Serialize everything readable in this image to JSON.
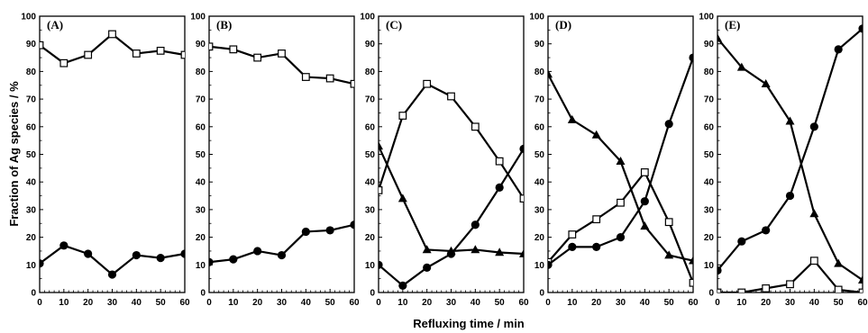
{
  "figure": {
    "xlabel": "Refluxing time / min",
    "ylabel": "Fraction of Ag species / %"
  },
  "chart_data": [
    {
      "type": "line",
      "label": "(A)",
      "x": [
        0,
        10,
        20,
        30,
        40,
        50,
        60
      ],
      "xlim": [
        0,
        60
      ],
      "ylim": [
        0,
        100
      ],
      "xticks": [
        0,
        10,
        20,
        30,
        40,
        50,
        60
      ],
      "yticks": [
        0,
        10,
        20,
        30,
        40,
        50,
        60,
        70,
        80,
        90,
        100
      ],
      "series": [
        {
          "marker": "open-square",
          "values": [
            89.5,
            83,
            86,
            93.5,
            86.5,
            87.5,
            86
          ]
        },
        {
          "marker": "filled-circle",
          "values": [
            10.5,
            17,
            14,
            6.5,
            13.5,
            12.5,
            14
          ]
        }
      ]
    },
    {
      "type": "line",
      "label": "(B)",
      "x": [
        0,
        10,
        20,
        30,
        40,
        50,
        60
      ],
      "xlim": [
        0,
        60
      ],
      "ylim": [
        0,
        100
      ],
      "xticks": [
        0,
        10,
        20,
        30,
        40,
        50,
        60
      ],
      "yticks": [
        0,
        10,
        20,
        30,
        40,
        50,
        60,
        70,
        80,
        90,
        100
      ],
      "series": [
        {
          "marker": "open-square",
          "values": [
            89,
            88,
            85,
            86.5,
            78,
            77.5,
            75.5
          ]
        },
        {
          "marker": "filled-circle",
          "values": [
            11,
            12,
            15,
            13.5,
            22,
            22.5,
            24.5
          ]
        }
      ]
    },
    {
      "type": "line",
      "label": "(C)",
      "x": [
        0,
        10,
        20,
        30,
        40,
        50,
        60
      ],
      "xlim": [
        0,
        60
      ],
      "ylim": [
        0,
        100
      ],
      "xticks": [
        0,
        10,
        20,
        30,
        40,
        50,
        60
      ],
      "yticks": [
        0,
        10,
        20,
        30,
        40,
        50,
        60,
        70,
        80,
        90,
        100
      ],
      "series": [
        {
          "marker": "open-square",
          "values": [
            37,
            64,
            75.5,
            71,
            60,
            47.5,
            34
          ]
        },
        {
          "marker": "filled-circle",
          "values": [
            10,
            2.5,
            9,
            14,
            24.5,
            38,
            52
          ]
        },
        {
          "marker": "filled-triangle",
          "values": [
            53,
            34,
            15.5,
            15,
            15.5,
            14.5,
            14
          ]
        }
      ]
    },
    {
      "type": "line",
      "label": "(D)",
      "x": [
        0,
        10,
        20,
        30,
        40,
        50,
        60
      ],
      "xlim": [
        0,
        60
      ],
      "ylim": [
        0,
        100
      ],
      "xticks": [
        0,
        10,
        20,
        30,
        40,
        50,
        60
      ],
      "yticks": [
        0,
        10,
        20,
        30,
        40,
        50,
        60,
        70,
        80,
        90,
        100
      ],
      "series": [
        {
          "marker": "open-square",
          "values": [
            11,
            21,
            26.5,
            32.5,
            43.5,
            25.5,
            3.5
          ]
        },
        {
          "marker": "filled-circle",
          "values": [
            10,
            16.5,
            16.5,
            20,
            33,
            61,
            85
          ]
        },
        {
          "marker": "filled-triangle",
          "values": [
            79,
            62.5,
            57,
            47.5,
            24,
            13.5,
            11.5
          ]
        }
      ]
    },
    {
      "type": "line",
      "label": "(E)",
      "x": [
        0,
        10,
        20,
        30,
        40,
        50,
        60
      ],
      "xlim": [
        0,
        60
      ],
      "ylim": [
        0,
        100
      ],
      "xticks": [
        0,
        10,
        20,
        30,
        40,
        50,
        60
      ],
      "yticks": [
        0,
        10,
        20,
        30,
        40,
        50,
        60,
        70,
        80,
        90,
        100
      ],
      "series": [
        {
          "marker": "open-square",
          "values": [
            0,
            0,
            1.5,
            3,
            11.5,
            1,
            0
          ]
        },
        {
          "marker": "filled-circle",
          "values": [
            8,
            18.5,
            22.5,
            35,
            60,
            88,
            95.5
          ]
        },
        {
          "marker": "filled-triangle",
          "values": [
            92,
            81.5,
            75.5,
            62,
            28.5,
            10.5,
            4.5
          ]
        }
      ]
    }
  ]
}
